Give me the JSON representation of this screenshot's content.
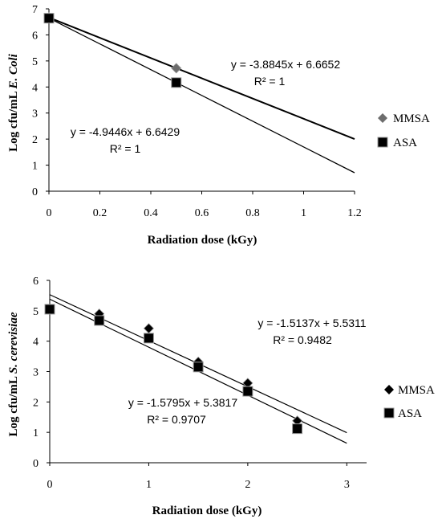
{
  "chart_data": [
    {
      "type": "scatter",
      "xlabel": "Radiation dose (kGy)",
      "ylabel_prefix": "Log  cfu/mL ",
      "ylabel_organism": "E. Coli",
      "xlim": [
        0,
        1.2
      ],
      "ylim": [
        0,
        7
      ],
      "xticks": [
        0,
        0.2,
        0.4,
        0.6,
        0.8,
        1,
        1.2
      ],
      "xtick_labels": [
        "0",
        "0.2",
        "0.4",
        "0.6",
        "0.8",
        "1",
        "1.2"
      ],
      "yticks": [
        0,
        1,
        2,
        3,
        4,
        5,
        6,
        7
      ],
      "ytick_labels": [
        "0",
        "1",
        "2",
        "3",
        "4",
        "5",
        "6",
        "7"
      ],
      "legend_position": "right",
      "series": [
        {
          "name": "MMSA",
          "marker": "diamond",
          "color": "#6d6d6d",
          "x": [
            0,
            0.5
          ],
          "y": [
            6.67,
            4.72
          ],
          "trendline": {
            "slope": -3.8845,
            "intercept": 6.6652,
            "x_range": [
              0,
              1.2
            ],
            "width": 2
          },
          "equation": "y = -3.8845x + 6.6652",
          "r2": "R² = 1"
        },
        {
          "name": "ASA",
          "marker": "square",
          "color": "#000000",
          "x": [
            0,
            0.5
          ],
          "y": [
            6.64,
            4.17
          ],
          "trendline": {
            "slope": -4.9446,
            "intercept": 6.6429,
            "x_range": [
              0,
              1.2
            ],
            "width": 1.3
          },
          "equation": "y = -4.9446x + 6.6429",
          "r2": "R² = 1"
        }
      ]
    },
    {
      "type": "scatter",
      "xlabel": "Radiation dose (kGy)",
      "ylabel_prefix": "Log  cfu/mL ",
      "ylabel_organism": "S. cerevisiae",
      "xlim": [
        0,
        3.2
      ],
      "ylim": [
        0,
        6
      ],
      "xticks": [
        0,
        1,
        2,
        3
      ],
      "xtick_labels": [
        "0",
        "1",
        "2",
        "3"
      ],
      "yticks": [
        0,
        1,
        2,
        3,
        4,
        5,
        6
      ],
      "ytick_labels": [
        "0",
        "1",
        "2",
        "3",
        "4",
        "5",
        "6"
      ],
      "legend_position": "right",
      "series": [
        {
          "name": "MMSA",
          "marker": "diamond",
          "color": "#000000",
          "x": [
            0,
            0.5,
            1,
            1.5,
            2,
            2.5
          ],
          "y": [
            5.05,
            4.9,
            4.42,
            3.32,
            2.62,
            1.38
          ],
          "trendline": {
            "slope": -1.5137,
            "intercept": 5.5311,
            "x_range": [
              0,
              3
            ],
            "width": 1.2
          },
          "equation": "y = -1.5137x + 5.5311",
          "r2": "R² = 0.9482"
        },
        {
          "name": "ASA",
          "marker": "square",
          "color": "#000000",
          "x": [
            0,
            0.5,
            1,
            1.5,
            2,
            2.5
          ],
          "y": [
            5.05,
            4.68,
            4.1,
            3.15,
            2.35,
            1.12
          ],
          "trendline": {
            "slope": -1.5795,
            "intercept": 5.3817,
            "x_range": [
              0,
              3
            ],
            "width": 1.2
          },
          "equation": "y = -1.5795x + 5.3817",
          "r2": "R² = 0.9707"
        }
      ]
    }
  ]
}
